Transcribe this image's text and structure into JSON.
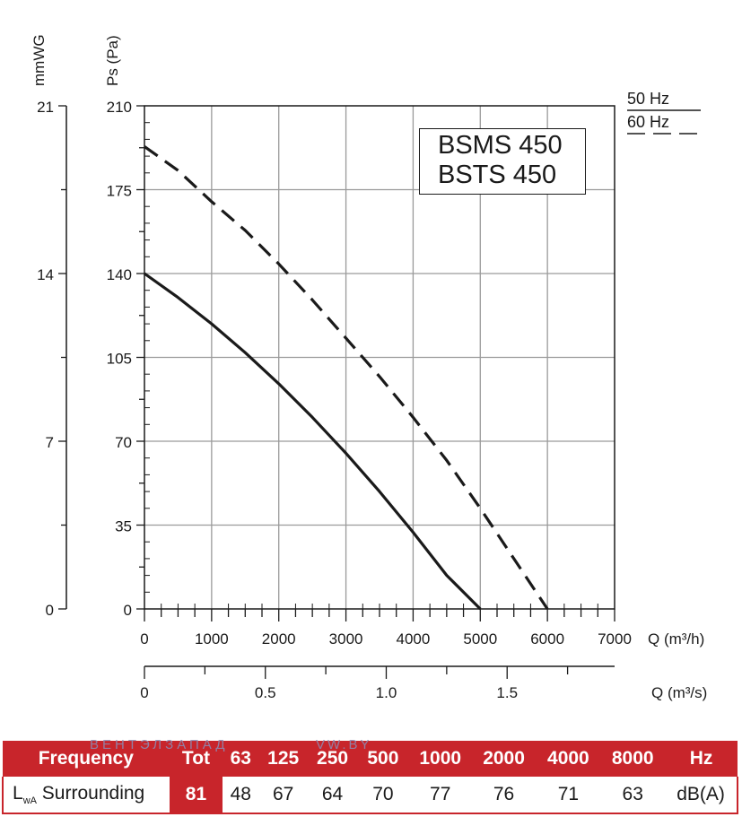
{
  "chart_data": {
    "type": "line",
    "ylabel_pa": "Ps (Pa)",
    "ylabel_mmwg": "mmWG",
    "xlabel_m3h": "Q (m³/h)",
    "xlabel_m3s": "Q (m³/s)",
    "xlim": [
      0,
      7000
    ],
    "ylim": [
      0,
      210
    ],
    "grid": true,
    "legend_placement": "top-right",
    "x_ticks_m3h": [
      "0",
      "1000",
      "2000",
      "3000",
      "4000",
      "5000",
      "6000",
      "7000"
    ],
    "x_ticks_m3s": [
      "0",
      "0.5",
      "1.0",
      "1.5"
    ],
    "y_ticks_pa": [
      "0",
      "35",
      "70",
      "105",
      "140",
      "175",
      "210"
    ],
    "y_ticks_mmwg": [
      "0",
      "7",
      "14",
      "21"
    ],
    "model_labels": [
      "BSMS 450",
      "BSTS 450"
    ],
    "series": [
      {
        "name": "50 Hz",
        "style": "solid",
        "x": [
          0,
          500,
          1000,
          1500,
          2000,
          2500,
          3000,
          3500,
          4000,
          4500,
          5000
        ],
        "y": [
          140,
          130,
          119,
          107,
          94,
          80,
          65,
          49,
          32,
          14,
          0
        ]
      },
      {
        "name": "60 Hz",
        "style": "dashed",
        "x": [
          0,
          500,
          1000,
          1500,
          2000,
          2500,
          3000,
          3500,
          4000,
          4500,
          5000,
          5500,
          6000
        ],
        "y": [
          193,
          183,
          170,
          158,
          144,
          129,
          113,
          97,
          80,
          62,
          42,
          21,
          0
        ]
      }
    ]
  },
  "sound_table": {
    "header": [
      "Frequency",
      "Tot",
      "63",
      "125",
      "250",
      "500",
      "1000",
      "2000",
      "4000",
      "8000",
      "Hz"
    ],
    "row_label_main": "L",
    "row_label_sub": "wA",
    "row_label_rest": " Surrounding",
    "values": [
      "81",
      "48",
      "67",
      "64",
      "70",
      "77",
      "76",
      "71",
      "63",
      "dB(A)"
    ]
  },
  "watermark": {
    "text1": "ВЕНТЭЛЗАПАД",
    "text2": "VW.BY"
  },
  "colors": {
    "accent": "#c8252b",
    "line": "#1a1a1a",
    "grid": "#9a9a9a"
  }
}
